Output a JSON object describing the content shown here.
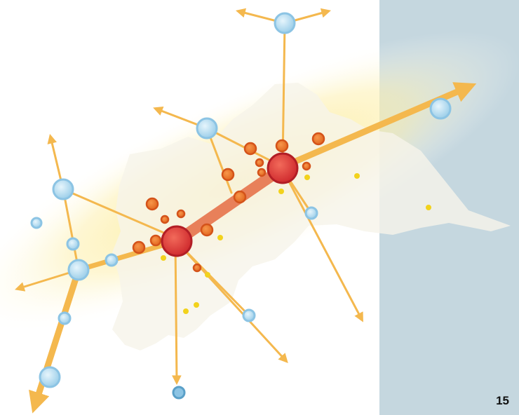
{
  "page": {
    "number": "15"
  },
  "colors": {
    "side_panel": "#c5d7df",
    "corridor": "#fbe98a",
    "region": "#f5f3ea",
    "main_link": "#e8805a",
    "arrow": "#f4b84e",
    "major_node": "#d9383a",
    "minor_node": "#e8722c",
    "satellite_node": "#a9d6ee",
    "small_dot": "#f2d21c"
  },
  "icons": {
    "major_node": "large-red-circle",
    "minor_node": "small-orange-circle",
    "satellite_node": "light-blue-circle",
    "arrow": "arrowhead",
    "dot": "yellow-dot"
  }
}
